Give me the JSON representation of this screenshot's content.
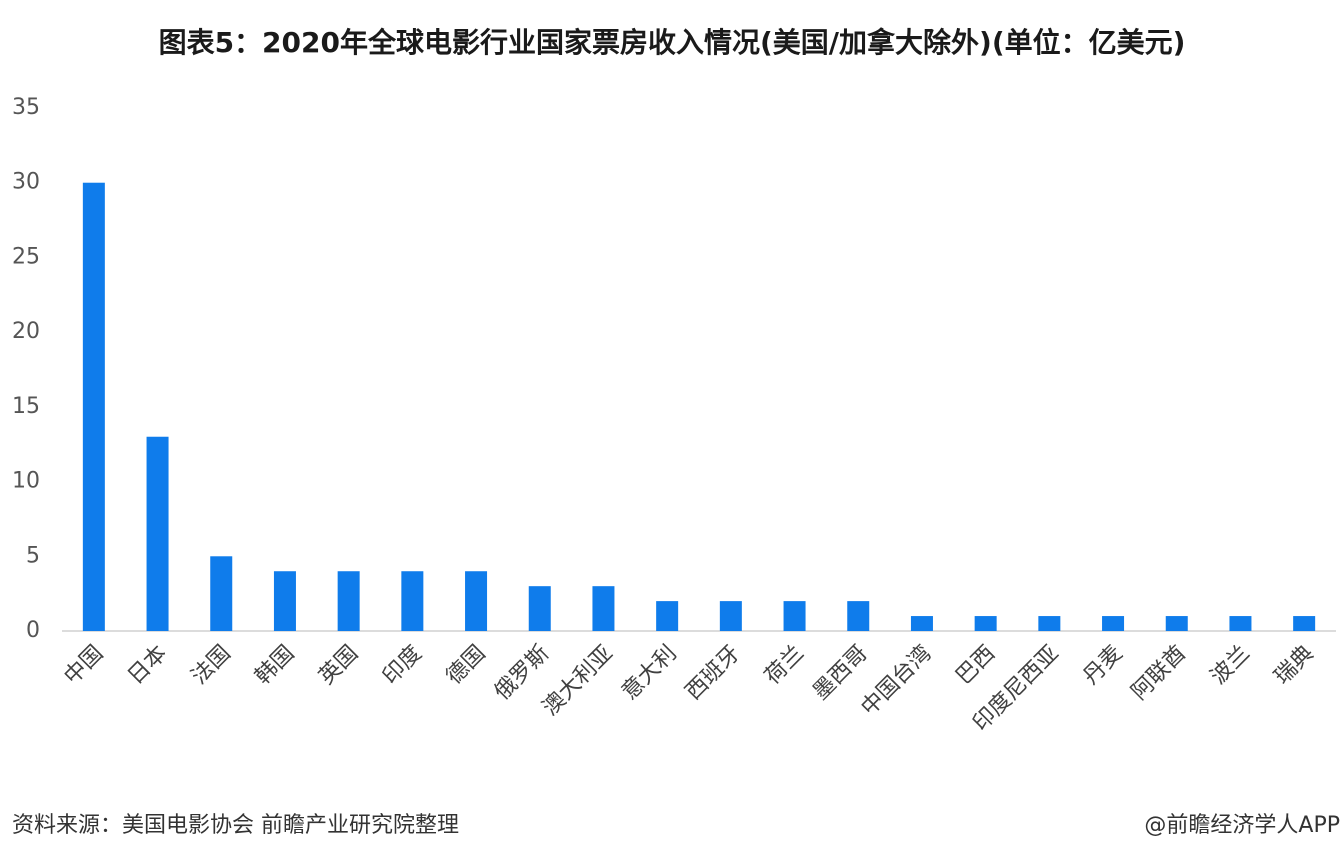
{
  "chart_data": {
    "type": "bar",
    "title": "图表5：2020年全球电影行业国家票房收入情况(美国/加拿大除外)(单位：亿美元)",
    "categories": [
      "中国",
      "日本",
      "法国",
      "韩国",
      "英国",
      "印度",
      "德国",
      "俄罗斯",
      "澳大利亚",
      "意大利",
      "西班牙",
      "荷兰",
      "墨西哥",
      "中国台湾",
      "巴西",
      "印度尼西亚",
      "丹麦",
      "阿联酋",
      "波兰",
      "瑞典"
    ],
    "values": [
      30,
      13,
      5,
      4,
      4,
      4,
      4,
      3,
      3,
      2,
      2,
      2,
      2,
      1,
      1,
      1,
      1,
      1,
      1,
      1
    ],
    "color": "#0f7ceb",
    "ylim": [
      0,
      35
    ],
    "yticks": [
      0,
      5,
      10,
      15,
      20,
      25,
      30,
      35
    ],
    "grid": false,
    "source": "资料来源：美国电影协会 前瞻产业研究院整理",
    "credit": "@前瞻经济学人APP"
  }
}
